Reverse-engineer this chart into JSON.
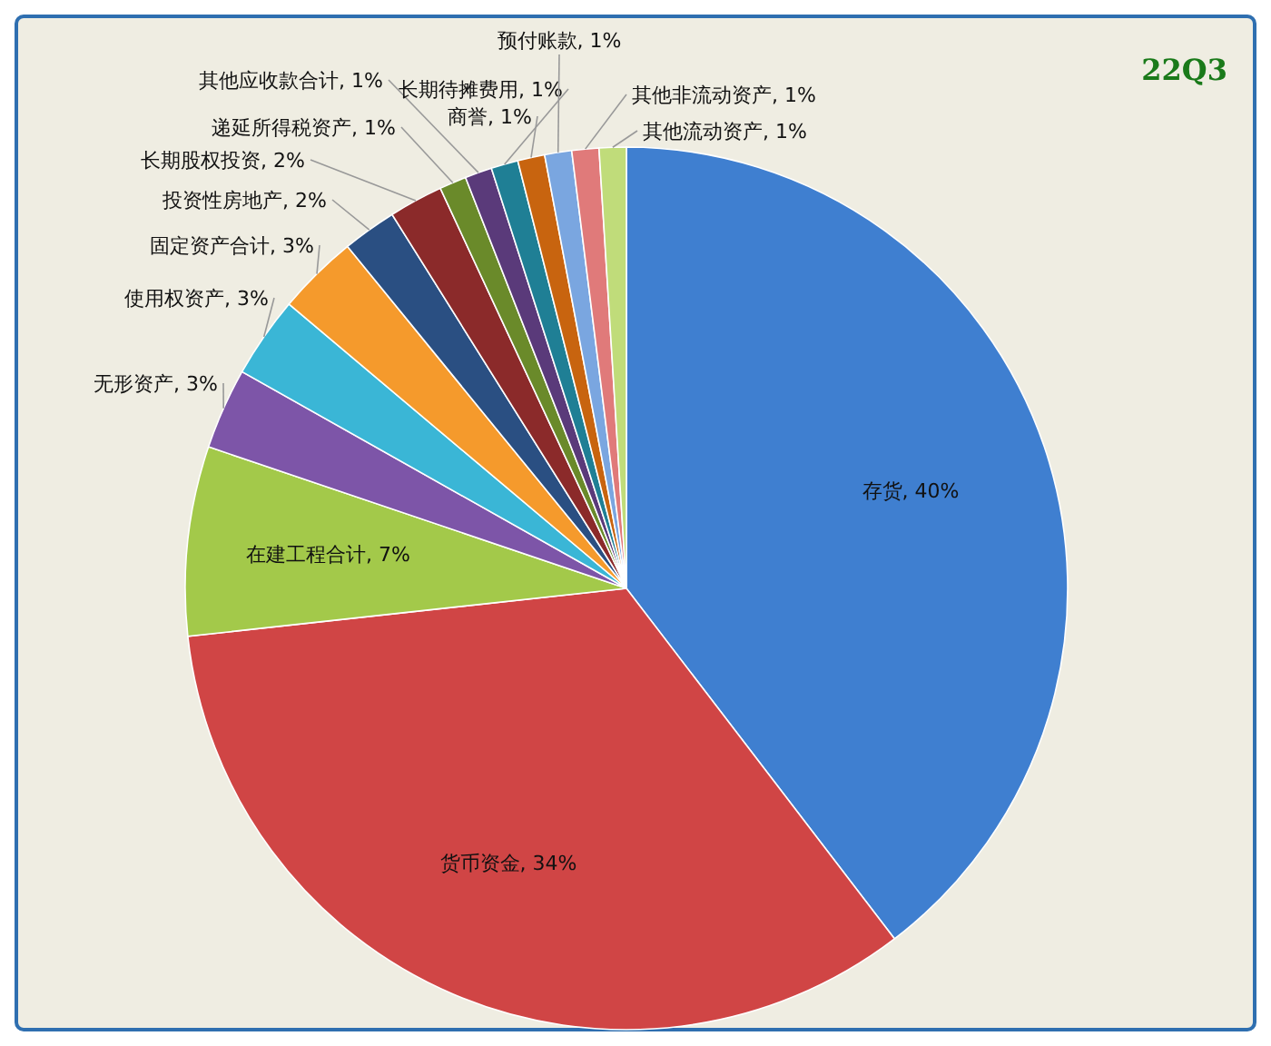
{
  "chart_data": {
    "type": "pie",
    "title": "22Q3",
    "categories": [
      "存货",
      "货币资金",
      "在建工程合计",
      "无形资产",
      "使用权资产",
      "固定资产合计",
      "投资性房地产",
      "长期股权投资",
      "递延所得税资产",
      "其他应收款合计",
      "长期待摊费用",
      "商誉",
      "预付账款",
      "其他非流动资产",
      "其他流动资产"
    ],
    "values": [
      40,
      34,
      7,
      3,
      3,
      3,
      2,
      2,
      1,
      1,
      1,
      1,
      1,
      1,
      1
    ],
    "value_labels": [
      "40%",
      "34%",
      "7%",
      "3%",
      "3%",
      "3%",
      "2%",
      "2%",
      "1%",
      "1%",
      "1%",
      "1%",
      "1%",
      "1%",
      "1%"
    ],
    "colors": [
      "#3f7fd0",
      "#d04545",
      "#a3c94a",
      "#7d55a8",
      "#3ab6d6",
      "#f59a2c",
      "#2a4f82",
      "#8b2a2a",
      "#6a8a2a",
      "#5a3a7a",
      "#1f7f95",
      "#c8640f",
      "#7aa6e0",
      "#e07a7a",
      "#c0dc7a"
    ]
  }
}
